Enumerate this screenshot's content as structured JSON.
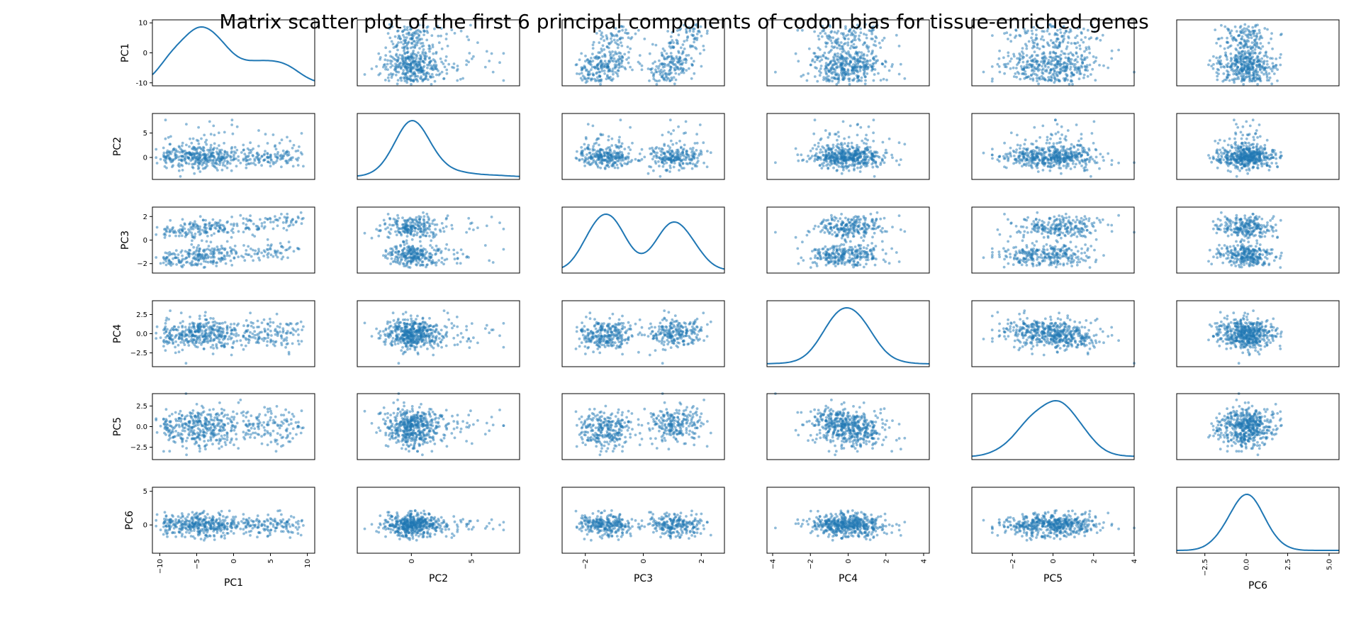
{
  "chart_data": {
    "type": "scatter",
    "subtype": "scatter-matrix",
    "title": "Matrix scatter plot of the first 6 principal components of codon bias for tissue-enriched genes",
    "diagonal": "kde",
    "marker_color": "#1f77b4",
    "variables": [
      {
        "name": "PC1",
        "range": [
          -11,
          11
        ],
        "yticks": [
          {
            "v": 10,
            "label": "10"
          },
          {
            "v": 0,
            "label": "0"
          },
          {
            "v": -10,
            "label": "-10"
          }
        ],
        "xticks": [
          {
            "v": -10,
            "label": "−10"
          },
          {
            "v": -5,
            "label": "−5"
          },
          {
            "v": 0,
            "label": "0"
          },
          {
            "v": 5,
            "label": "5"
          },
          {
            "v": 10,
            "label": "10"
          }
        ],
        "dist": "flat",
        "mean": 0,
        "sd": 5
      },
      {
        "name": "PC2",
        "range": [
          -4.5,
          9.0
        ],
        "yticks": [
          {
            "v": 5,
            "label": "5"
          },
          {
            "v": 0,
            "label": "0"
          }
        ],
        "xticks": [
          {
            "v": 0,
            "label": "0"
          },
          {
            "v": 5,
            "label": "5"
          }
        ],
        "dist": "skew",
        "mean": 0,
        "sd": 1.4
      },
      {
        "name": "PC3",
        "range": [
          -2.8,
          2.8
        ],
        "yticks": [
          {
            "v": 2,
            "label": "2"
          },
          {
            "v": 0,
            "label": "0"
          },
          {
            "v": -2,
            "label": "−2"
          }
        ],
        "xticks": [
          {
            "v": -2,
            "label": "−2"
          },
          {
            "v": 0,
            "label": "0"
          },
          {
            "v": 2,
            "label": "2"
          }
        ],
        "dist": "bimodal",
        "mean": 0,
        "sd": 0.45
      },
      {
        "name": "PC4",
        "range": [
          -4.3,
          4.3
        ],
        "yticks": [
          {
            "v": 2.5,
            "label": "2.5"
          },
          {
            "v": 0,
            "label": "0.0"
          },
          {
            "v": -2.5,
            "label": "−2.5"
          }
        ],
        "xticks": [
          {
            "v": -4,
            "label": "−4"
          },
          {
            "v": -2,
            "label": "−2"
          },
          {
            "v": 0,
            "label": "0"
          },
          {
            "v": 2,
            "label": "2"
          },
          {
            "v": 4,
            "label": "4"
          }
        ],
        "dist": "normal",
        "mean": 0,
        "sd": 1.1
      },
      {
        "name": "PC5",
        "range": [
          -4.0,
          4.0
        ],
        "yticks": [
          {
            "v": 2.5,
            "label": "2.5"
          },
          {
            "v": 0,
            "label": "0.0"
          },
          {
            "v": -2.5,
            "label": "−2.5"
          }
        ],
        "xticks": [
          {
            "v": -2,
            "label": "−2"
          },
          {
            "v": 0,
            "label": "0"
          },
          {
            "v": 2,
            "label": "2"
          },
          {
            "v": 4,
            "label": "4"
          }
        ],
        "dist": "normal",
        "mean": 0,
        "sd": 1.1
      },
      {
        "name": "PC6",
        "range": [
          -4.2,
          5.6
        ],
        "yticks": [
          {
            "v": 5,
            "label": "5"
          },
          {
            "v": 0,
            "label": "0"
          }
        ],
        "xticks": [
          {
            "v": -2.5,
            "label": "−2.5"
          },
          {
            "v": 0,
            "label": "0.0"
          },
          {
            "v": 2.5,
            "label": "2.5"
          },
          {
            "v": 5,
            "label": "5.0"
          }
        ],
        "dist": "normal",
        "mean": 0,
        "sd": 0.9
      }
    ],
    "points_per_panel": 500
  }
}
